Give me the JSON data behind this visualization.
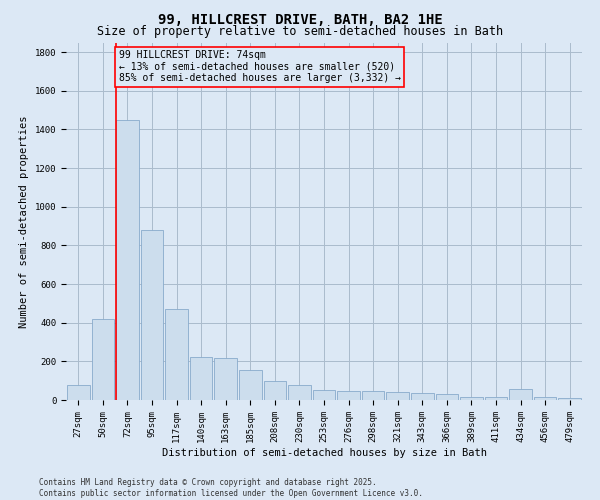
{
  "title": "99, HILLCREST DRIVE, BATH, BA2 1HE",
  "subtitle": "Size of property relative to semi-detached houses in Bath",
  "xlabel": "Distribution of semi-detached houses by size in Bath",
  "ylabel": "Number of semi-detached properties",
  "bar_labels": [
    "27sqm",
    "50sqm",
    "72sqm",
    "95sqm",
    "117sqm",
    "140sqm",
    "163sqm",
    "185sqm",
    "208sqm",
    "230sqm",
    "253sqm",
    "276sqm",
    "298sqm",
    "321sqm",
    "343sqm",
    "366sqm",
    "389sqm",
    "411sqm",
    "434sqm",
    "456sqm",
    "479sqm"
  ],
  "bar_values": [
    80,
    420,
    1450,
    880,
    470,
    220,
    215,
    155,
    100,
    80,
    50,
    45,
    45,
    40,
    35,
    30,
    15,
    15,
    55,
    15,
    10
  ],
  "bar_color": "#ccdded",
  "bar_edgecolor": "#88aacc",
  "grid_color": "#aabbcc",
  "background_color": "#dce8f5",
  "vline_color": "red",
  "annotation_text": "99 HILLCREST DRIVE: 74sqm\n← 13% of semi-detached houses are smaller (520)\n85% of semi-detached houses are larger (3,332) →",
  "ylim": [
    0,
    1850
  ],
  "yticks": [
    0,
    200,
    400,
    600,
    800,
    1000,
    1200,
    1400,
    1600,
    1800
  ],
  "footer": "Contains HM Land Registry data © Crown copyright and database right 2025.\nContains public sector information licensed under the Open Government Licence v3.0.",
  "title_fontsize": 10,
  "subtitle_fontsize": 8.5,
  "axis_label_fontsize": 7.5,
  "tick_fontsize": 6.5,
  "annotation_fontsize": 7,
  "footer_fontsize": 5.5
}
